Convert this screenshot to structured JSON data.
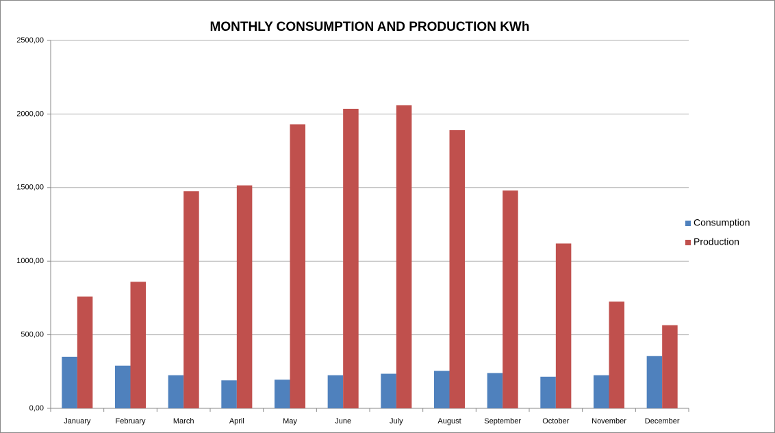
{
  "chart_data": {
    "type": "bar",
    "title": "MONTHLY CONSUMPTION AND PRODUCTION KWh",
    "categories": [
      "January",
      "February",
      "March",
      "April",
      "May",
      "June",
      "July",
      "August",
      "September",
      "October",
      "November",
      "December"
    ],
    "series": [
      {
        "name": "Consumption",
        "color": "#4f81bd",
        "values": [
          350,
          290,
          225,
          190,
          195,
          225,
          235,
          255,
          240,
          215,
          225,
          355
        ]
      },
      {
        "name": "Production",
        "color": "#c0504d",
        "values": [
          760,
          860,
          1475,
          1515,
          1930,
          2035,
          2060,
          1890,
          1480,
          1120,
          725,
          565
        ]
      }
    ],
    "ylim": [
      0,
      2500
    ],
    "yticks": [
      {
        "value": 0,
        "label": "0,00"
      },
      {
        "value": 500,
        "label": "500,00"
      },
      {
        "value": 1000,
        "label": "1000,00"
      },
      {
        "value": 1500,
        "label": "1500,00"
      },
      {
        "value": 2000,
        "label": "2000,00"
      },
      {
        "value": 2500,
        "label": "2500,00"
      }
    ],
    "grid": true,
    "legend": "right"
  }
}
